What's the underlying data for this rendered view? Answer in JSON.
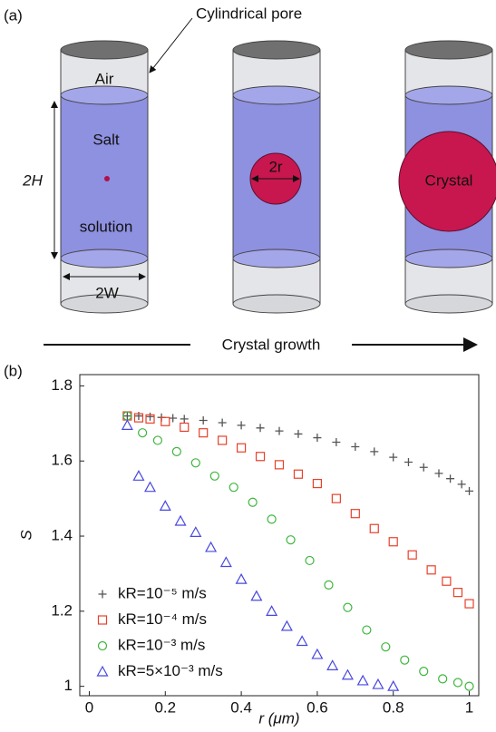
{
  "panel_a": {
    "label": "(a)",
    "pore": "Cylindrical pore",
    "air": "Air",
    "salt": "Salt",
    "solution": "solution",
    "height": "2H",
    "width": "2W",
    "radius": "2r",
    "crystal": "Crystal",
    "growth": "Crystal growth"
  },
  "chart_data": {
    "type": "scatter",
    "panel": "(b)",
    "xlabel": "r (μm)",
    "ylabel": "S",
    "xlim": [
      -0.025,
      1.025
    ],
    "ylim": [
      0.975,
      1.83
    ],
    "xticks": [
      0,
      0.2,
      0.4,
      0.6,
      0.8,
      1
    ],
    "yticks": [
      1,
      1.2,
      1.4,
      1.6,
      1.8
    ],
    "legend": "lower left",
    "series": [
      {
        "name": "kR=10⁻⁵ m/s",
        "color": "#555555",
        "marker": "plus",
        "x": [
          0.1,
          0.13,
          0.16,
          0.19,
          0.22,
          0.25,
          0.3,
          0.35,
          0.4,
          0.45,
          0.5,
          0.55,
          0.6,
          0.65,
          0.7,
          0.75,
          0.8,
          0.84,
          0.88,
          0.92,
          0.95,
          0.98,
          1.0
        ],
        "values": [
          1.72,
          1.72,
          1.718,
          1.716,
          1.714,
          1.712,
          1.708,
          1.702,
          1.695,
          1.688,
          1.68,
          1.672,
          1.662,
          1.65,
          1.638,
          1.625,
          1.61,
          1.597,
          1.583,
          1.567,
          1.553,
          1.538,
          1.52
        ]
      },
      {
        "name": "kR=10⁻⁴ m/s",
        "color": "#e8402a",
        "marker": "square",
        "x": [
          0.1,
          0.13,
          0.16,
          0.2,
          0.25,
          0.3,
          0.35,
          0.4,
          0.45,
          0.5,
          0.55,
          0.6,
          0.65,
          0.7,
          0.75,
          0.8,
          0.85,
          0.9,
          0.94,
          0.97,
          1.0
        ],
        "values": [
          1.72,
          1.715,
          1.712,
          1.705,
          1.69,
          1.675,
          1.655,
          1.635,
          1.612,
          1.59,
          1.565,
          1.54,
          1.5,
          1.46,
          1.42,
          1.385,
          1.35,
          1.31,
          1.28,
          1.25,
          1.22
        ]
      },
      {
        "name": "kR=10⁻³ m/s",
        "color": "#3db53d",
        "marker": "circle",
        "x": [
          0.1,
          0.14,
          0.18,
          0.23,
          0.28,
          0.33,
          0.38,
          0.43,
          0.48,
          0.53,
          0.58,
          0.63,
          0.68,
          0.73,
          0.78,
          0.83,
          0.88,
          0.93,
          0.97,
          1.0
        ],
        "values": [
          1.72,
          1.675,
          1.655,
          1.625,
          1.595,
          1.56,
          1.53,
          1.49,
          1.445,
          1.39,
          1.335,
          1.27,
          1.21,
          1.15,
          1.105,
          1.07,
          1.04,
          1.02,
          1.01,
          1.0
        ]
      },
      {
        "name": "kR=5×10⁻³ m/s",
        "color": "#4848e0",
        "marker": "triangle",
        "x": [
          0.1,
          0.13,
          0.16,
          0.2,
          0.24,
          0.28,
          0.32,
          0.36,
          0.4,
          0.44,
          0.48,
          0.52,
          0.56,
          0.6,
          0.64,
          0.68,
          0.72,
          0.76,
          0.8
        ],
        "values": [
          1.695,
          1.56,
          1.53,
          1.48,
          1.44,
          1.41,
          1.37,
          1.33,
          1.285,
          1.24,
          1.2,
          1.16,
          1.12,
          1.085,
          1.055,
          1.03,
          1.015,
          1.005,
          1.0
        ]
      }
    ]
  }
}
